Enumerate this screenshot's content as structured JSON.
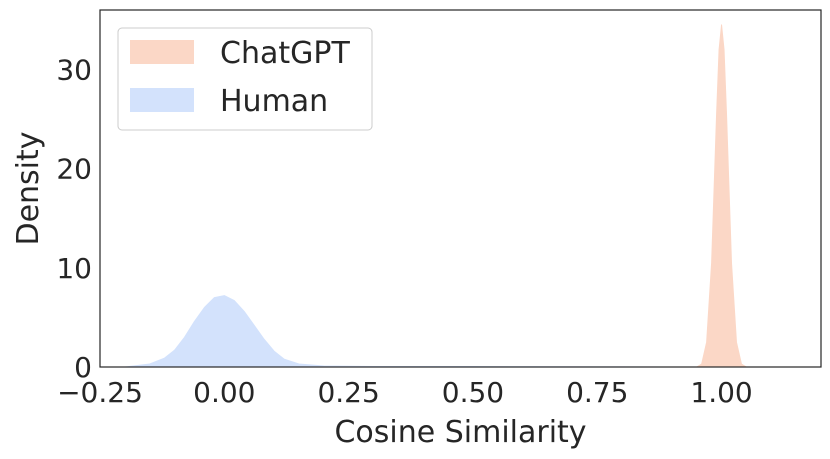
{
  "chart_data": {
    "type": "area",
    "xlabel": "Cosine Similarity",
    "ylabel": "Density",
    "xlim": [
      -0.25,
      1.2
    ],
    "ylim": [
      0,
      36
    ],
    "x_ticks": [
      {
        "value": -0.25,
        "label": "−0.25"
      },
      {
        "value": 0.0,
        "label": "0.00"
      },
      {
        "value": 0.25,
        "label": "0.25"
      },
      {
        "value": 0.5,
        "label": "0.50"
      },
      {
        "value": 0.75,
        "label": "0.75"
      },
      {
        "value": 1.0,
        "label": "1.00"
      }
    ],
    "y_ticks": [
      {
        "value": 0,
        "label": "0"
      },
      {
        "value": 10,
        "label": "10"
      },
      {
        "value": 20,
        "label": "20"
      },
      {
        "value": 30,
        "label": "30"
      }
    ],
    "grid": false,
    "legend_position": "top-left",
    "series": [
      {
        "name": "ChatGPT",
        "color": "#fbd7c6",
        "x": [
          0.95,
          0.96,
          0.97,
          0.98,
          0.99,
          0.995,
          1.0,
          1.005,
          1.01,
          1.02,
          1.03,
          1.04,
          1.05
        ],
        "y": [
          0,
          0.3,
          2.5,
          10.5,
          25.5,
          32.0,
          34.5,
          32.0,
          25.5,
          10.5,
          2.5,
          0.3,
          0
        ]
      },
      {
        "name": "Human",
        "color": "#d3e2fc",
        "x": [
          -0.2,
          -0.15,
          -0.12,
          -0.1,
          -0.08,
          -0.06,
          -0.04,
          -0.02,
          0.0,
          0.02,
          0.04,
          0.06,
          0.08,
          0.1,
          0.12,
          0.15,
          0.2,
          0.3,
          0.5,
          0.7,
          0.9
        ],
        "y": [
          0,
          0.3,
          0.9,
          1.7,
          3.0,
          4.6,
          6.0,
          7.0,
          7.2,
          6.7,
          5.6,
          4.2,
          2.8,
          1.6,
          0.8,
          0.3,
          0.1,
          0.05,
          0.05,
          0.02,
          0
        ]
      }
    ]
  }
}
